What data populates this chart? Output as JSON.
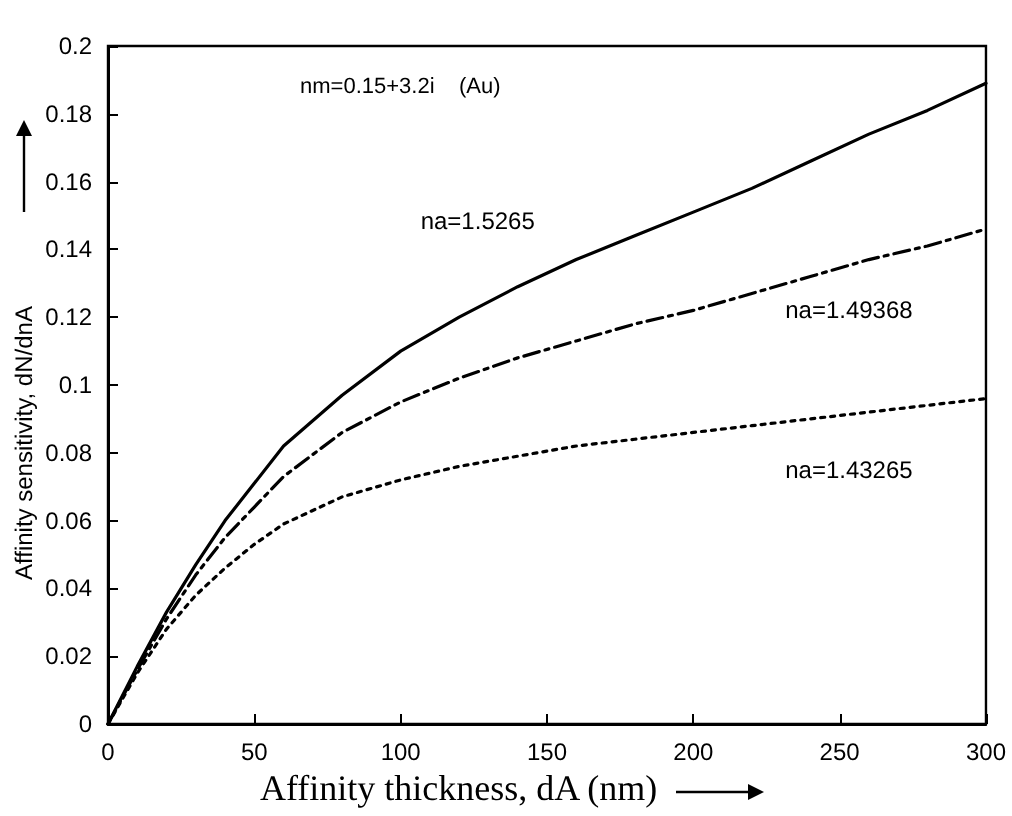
{
  "chart_data": {
    "type": "line",
    "xlabel": "Affinity thickness, dA (nm)",
    "ylabel": "Affinity sensitivity, dN/dnA",
    "annotations": [
      "nm=0.15+3.2i    (Au)"
    ],
    "x": [
      0,
      10,
      20,
      30,
      40,
      50,
      60,
      80,
      100,
      120,
      140,
      160,
      180,
      200,
      220,
      240,
      260,
      280,
      300
    ],
    "series": [
      {
        "name": "na=1.5265",
        "color": "#000000",
        "line_style": "solid",
        "values": [
          0,
          0.017,
          0.033,
          0.047,
          0.06,
          0.071,
          0.082,
          0.097,
          0.11,
          0.12,
          0.129,
          0.137,
          0.144,
          0.151,
          0.158,
          0.166,
          0.174,
          0.181,
          0.189
        ]
      },
      {
        "name": "na=1.49368",
        "color": "#000000",
        "line_style": "dashdot",
        "values": [
          0,
          0.016,
          0.031,
          0.044,
          0.055,
          0.064,
          0.073,
          0.086,
          0.095,
          0.102,
          0.108,
          0.113,
          0.118,
          0.122,
          0.127,
          0.132,
          0.137,
          0.141,
          0.146
        ]
      },
      {
        "name": "na=1.43265",
        "color": "#000000",
        "line_style": "dotted",
        "values": [
          0,
          0.015,
          0.028,
          0.038,
          0.046,
          0.053,
          0.059,
          0.067,
          0.072,
          0.076,
          0.079,
          0.082,
          0.084,
          0.086,
          0.088,
          0.09,
          0.092,
          0.094,
          0.096
        ]
      }
    ],
    "xlim": [
      0,
      300
    ],
    "xticks": [
      0,
      50,
      100,
      150,
      200,
      250,
      300
    ],
    "ylim": [
      0,
      0.2
    ],
    "yticks": [
      0,
      0.02,
      0.04,
      0.06,
      0.08,
      0.1,
      0.12,
      0.14,
      0.16,
      0.18,
      0.2
    ],
    "grid": false,
    "legend": false,
    "marker": "none"
  }
}
